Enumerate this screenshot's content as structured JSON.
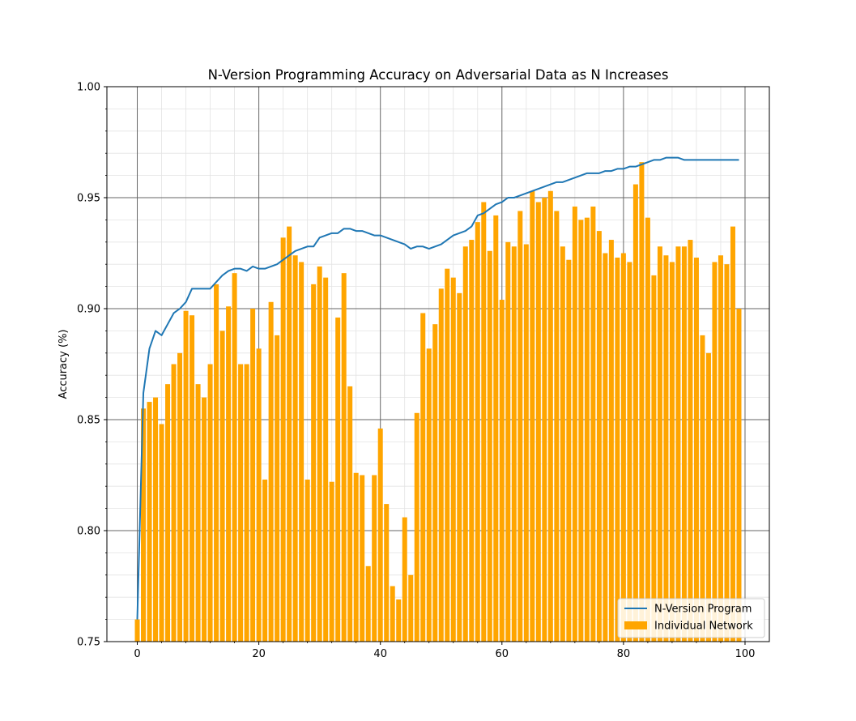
{
  "chart_data": {
    "type": "bar",
    "title": "N-Version Programming Accuracy on Adversarial Data as N Increases",
    "xlabel": "",
    "ylabel": "Accuracy (%)",
    "xlim": [
      -5,
      104
    ],
    "ylim": [
      0.75,
      1.0
    ],
    "xticks": [
      0,
      20,
      40,
      60,
      80,
      100
    ],
    "xtick_labels": [
      "0",
      "20",
      "40",
      "60",
      "80",
      "100"
    ],
    "yticks": [
      0.75,
      0.8,
      0.85,
      0.9,
      0.95,
      1.0
    ],
    "ytick_labels": [
      "0.75",
      "0.80",
      "0.85",
      "0.90",
      "0.95",
      "1.00"
    ],
    "grid": true,
    "minor_grid": true,
    "legend_position": "lower-right",
    "colors": {
      "bars": "#ffa500",
      "line": "#1f77b4",
      "major_grid": "#666666",
      "minor_grid": "#e3e3e3"
    },
    "series": [
      {
        "name": "N-Version Program",
        "kind": "line",
        "values": [
          0.76,
          0.862,
          0.882,
          0.89,
          0.888,
          0.893,
          0.898,
          0.9,
          0.903,
          0.909,
          0.909,
          0.909,
          0.909,
          0.912,
          0.915,
          0.917,
          0.918,
          0.918,
          0.917,
          0.919,
          0.918,
          0.918,
          0.919,
          0.92,
          0.922,
          0.924,
          0.926,
          0.927,
          0.928,
          0.928,
          0.932,
          0.933,
          0.934,
          0.934,
          0.936,
          0.936,
          0.935,
          0.935,
          0.934,
          0.933,
          0.933,
          0.932,
          0.931,
          0.93,
          0.929,
          0.927,
          0.928,
          0.928,
          0.927,
          0.928,
          0.929,
          0.931,
          0.933,
          0.934,
          0.935,
          0.937,
          0.942,
          0.943,
          0.945,
          0.947,
          0.948,
          0.95,
          0.95,
          0.951,
          0.952,
          0.953,
          0.954,
          0.955,
          0.956,
          0.957,
          0.957,
          0.958,
          0.959,
          0.96,
          0.961,
          0.961,
          0.961,
          0.962,
          0.962,
          0.963,
          0.963,
          0.964,
          0.964,
          0.965,
          0.966,
          0.967,
          0.967,
          0.968,
          0.968,
          0.968,
          0.967,
          0.967,
          0.967,
          0.967,
          0.967,
          0.967,
          0.967,
          0.967,
          0.967,
          0.967
        ]
      },
      {
        "name": "Individual Network",
        "kind": "bar",
        "values": [
          0.76,
          0.855,
          0.858,
          0.86,
          0.848,
          0.866,
          0.875,
          0.88,
          0.899,
          0.897,
          0.866,
          0.86,
          0.875,
          0.911,
          0.89,
          0.901,
          0.916,
          0.875,
          0.875,
          0.9,
          0.882,
          0.823,
          0.903,
          0.888,
          0.932,
          0.937,
          0.924,
          0.921,
          0.823,
          0.911,
          0.919,
          0.914,
          0.822,
          0.896,
          0.916,
          0.865,
          0.826,
          0.825,
          0.784,
          0.825,
          0.846,
          0.812,
          0.775,
          0.769,
          0.806,
          0.78,
          0.853,
          0.898,
          0.882,
          0.893,
          0.909,
          0.918,
          0.914,
          0.907,
          0.928,
          0.931,
          0.939,
          0.948,
          0.926,
          0.942,
          0.904,
          0.93,
          0.928,
          0.944,
          0.929,
          0.953,
          0.948,
          0.95,
          0.953,
          0.944,
          0.928,
          0.922,
          0.946,
          0.94,
          0.941,
          0.946,
          0.935,
          0.925,
          0.931,
          0.923,
          0.925,
          0.921,
          0.956,
          0.966,
          0.941,
          0.915,
          0.928,
          0.924,
          0.921,
          0.928,
          0.928,
          0.931,
          0.923,
          0.888,
          0.88,
          0.921,
          0.924,
          0.92,
          0.937,
          0.9
        ]
      }
    ]
  }
}
